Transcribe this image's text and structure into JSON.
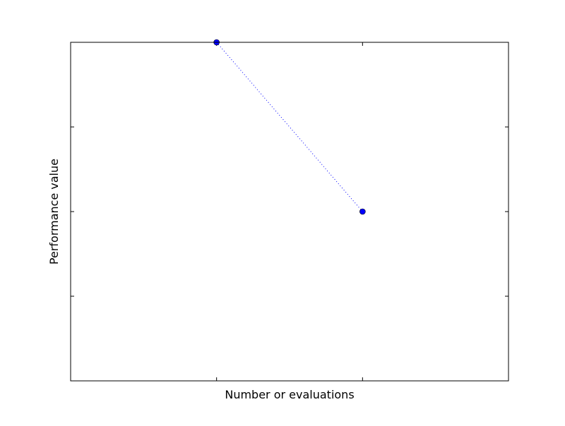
{
  "chart_data": {
    "type": "line",
    "title": "",
    "xlabel": "Number or evaluations",
    "ylabel": "Performance value",
    "x": [
      1,
      2
    ],
    "series": [
      {
        "values": [
          1.0,
          0.5
        ],
        "color": "#0000ff",
        "line_style": "dotted",
        "marker": "circle"
      }
    ],
    "xlim": [
      0,
      3
    ],
    "ylim": [
      0,
      1
    ],
    "x_ticks": [
      1,
      2
    ],
    "y_ticks": [
      0.25,
      0.5,
      0.75
    ],
    "tick_labels_shown": false,
    "grid": false,
    "legend": "none"
  }
}
